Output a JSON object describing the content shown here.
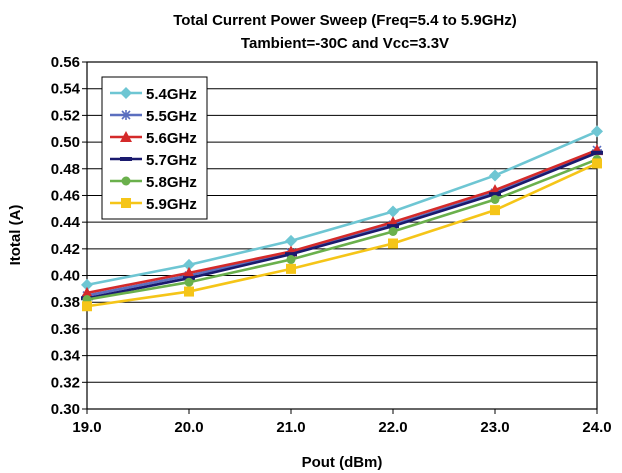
{
  "chart_data": {
    "type": "line",
    "title": "Total Current Power Sweep (Freq=5.4 to 5.9GHz)",
    "subtitle": "Tambient=-30C and Vcc=3.3V",
    "xlabel": "Pout (dBm)",
    "ylabel": "Itotal (A)",
    "x": [
      19.0,
      20.0,
      21.0,
      22.0,
      23.0,
      24.0
    ],
    "x_tick_labels": [
      "19.0",
      "20.0",
      "21.0",
      "22.0",
      "23.0",
      "24.0"
    ],
    "xlim": [
      19.0,
      24.0
    ],
    "ylim": [
      0.3,
      0.56
    ],
    "y_ticks": [
      0.3,
      0.32,
      0.34,
      0.36,
      0.38,
      0.4,
      0.42,
      0.44,
      0.46,
      0.48,
      0.5,
      0.52,
      0.54,
      0.56
    ],
    "y_tick_labels": [
      "0.30",
      "0.32",
      "0.34",
      "0.36",
      "0.38",
      "0.40",
      "0.42",
      "0.44",
      "0.46",
      "0.48",
      "0.50",
      "0.52",
      "0.54",
      "0.56"
    ],
    "grid": "horizontal",
    "legend_position": "top-left",
    "series": [
      {
        "name": "5.4GHz",
        "color": "#6ec6d3",
        "marker": "diamond",
        "values": [
          0.393,
          0.408,
          0.426,
          0.448,
          0.475,
          0.508
        ]
      },
      {
        "name": "5.5GHz",
        "color": "#5b6fbf",
        "marker": "star",
        "values": [
          0.385,
          0.4,
          0.417,
          0.438,
          0.462,
          0.494
        ]
      },
      {
        "name": "5.6GHz",
        "color": "#d42a2a",
        "marker": "triangle",
        "values": [
          0.387,
          0.402,
          0.418,
          0.44,
          0.464,
          0.494
        ]
      },
      {
        "name": "5.7GHz",
        "color": "#1a1a6e",
        "marker": "dash",
        "values": [
          0.383,
          0.398,
          0.416,
          0.437,
          0.461,
          0.492
        ]
      },
      {
        "name": "5.8GHz",
        "color": "#6ab04c",
        "marker": "circle",
        "values": [
          0.382,
          0.395,
          0.412,
          0.433,
          0.457,
          0.487
        ]
      },
      {
        "name": "5.9GHz",
        "color": "#f5c518",
        "marker": "square",
        "values": [
          0.377,
          0.388,
          0.405,
          0.424,
          0.449,
          0.484
        ]
      }
    ]
  }
}
